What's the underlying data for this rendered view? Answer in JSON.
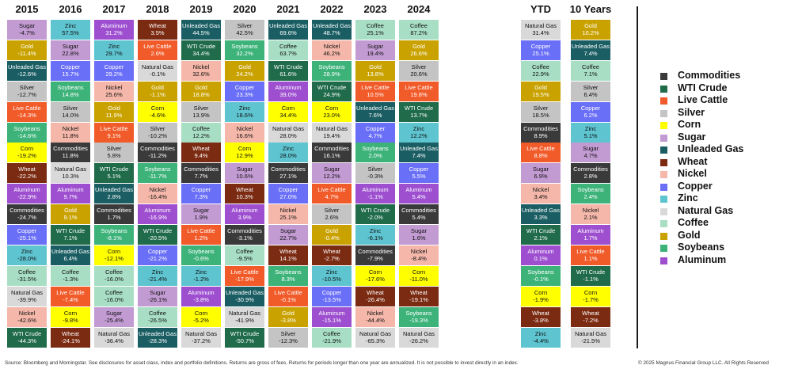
{
  "colors": {
    "Commodities": "#3a3a3a",
    "WTI Crude": "#1f6b4a",
    "Live Cattle": "#f15a29",
    "Silver": "#c4c4c4",
    "Corn": "#ffff00",
    "Sugar": "#c39bd3",
    "Unleaded Gas": "#1a5e63",
    "Wheat": "#7b2b12",
    "Nickel": "#f5b7aa",
    "Copper": "#6a6ff7",
    "Zinc": "#5ec4d0",
    "Natural Gas": "#d9d9d9",
    "Coffee": "#a8dfc4",
    "Gold": "#c9a200",
    "Soybeans": "#3db37a",
    "Aluminum": "#9d4fd0"
  },
  "dark_text": [
    "Commodities",
    "WTI Crude",
    "Live Cattle",
    "Unleaded Gas",
    "Wheat",
    "Copper",
    "Gold",
    "Soybeans",
    "Aluminum"
  ],
  "chart_data": {
    "type": "table",
    "columns": [
      "2015",
      "2016",
      "2017",
      "2018",
      "2019",
      "2020",
      "2021",
      "2022",
      "2023",
      "2024",
      "YTD",
      "10 Years"
    ],
    "cells": [
      [
        [
          "Sugar",
          "-4.7%"
        ],
        [
          "Gold",
          "-11.4%"
        ],
        [
          "Unleaded Gas",
          "-12.6%"
        ],
        [
          "Silver",
          "-12.7%"
        ],
        [
          "Live Cattle",
          "-14.3%"
        ],
        [
          "Soybeans",
          "-14.6%"
        ],
        [
          "Corn",
          "-19.2%"
        ],
        [
          "Wheat",
          "-22.2%"
        ],
        [
          "Aluminum",
          "-22.9%"
        ],
        [
          "Commodities",
          "-24.7%"
        ],
        [
          "Copper",
          "-25.1%"
        ],
        [
          "Zinc",
          "-28.0%"
        ],
        [
          "Coffee",
          "-31.5%"
        ],
        [
          "Natural Gas",
          "-39.9%"
        ],
        [
          "Nickel",
          "-42.6%"
        ],
        [
          "WTI Crude",
          "-44.3%"
        ]
      ],
      [
        [
          "Zinc",
          "57.5%"
        ],
        [
          "Sugar",
          "22.8%"
        ],
        [
          "Copper",
          "15.7%"
        ],
        [
          "Soybeans",
          "14.8%"
        ],
        [
          "Silver",
          "14.0%"
        ],
        [
          "Nickel",
          "11.8%"
        ],
        [
          "Commodities",
          "11.8%"
        ],
        [
          "Natural Gas",
          "10.3%"
        ],
        [
          "Aluminum",
          "9.7%"
        ],
        [
          "Gold",
          "9.1%"
        ],
        [
          "WTI Crude",
          "7.1%"
        ],
        [
          "Unleaded Gas",
          "6.4%"
        ],
        [
          "Coffee",
          "-1.3%"
        ],
        [
          "Live Cattle",
          "-7.4%"
        ],
        [
          "Corn",
          "-9.8%"
        ],
        [
          "Wheat",
          "-24.1%"
        ]
      ],
      [
        [
          "Aluminum",
          "31.2%"
        ],
        [
          "Zinc",
          "29.7%"
        ],
        [
          "Copper",
          "29.2%"
        ],
        [
          "Nickel",
          "25.6%"
        ],
        [
          "Gold",
          "11.9%"
        ],
        [
          "Live Cattle",
          "9.1%"
        ],
        [
          "Silver",
          "5.8%"
        ],
        [
          "WTI Crude",
          "5.1%"
        ],
        [
          "Unleaded Gas",
          "2.8%"
        ],
        [
          "Commodities",
          "1.7%"
        ],
        [
          "Soybeans",
          "-8.1%"
        ],
        [
          "Corn",
          "-12.1%"
        ],
        [
          "Coffee",
          "-16.0%"
        ],
        [
          "Coffee",
          "-16.0%"
        ],
        [
          "Sugar",
          "-25.4%"
        ],
        [
          "Natural Gas",
          "-36.4%"
        ]
      ],
      [
        [
          "Wheat",
          "3.5%"
        ],
        [
          "Live Cattle",
          "2.6%"
        ],
        [
          "Natural Gas",
          "-0.1%"
        ],
        [
          "Gold",
          "-1.1%"
        ],
        [
          "Corn",
          "-4.6%"
        ],
        [
          "Silver",
          "-10.2%"
        ],
        [
          "Commodities",
          "-11.2%"
        ],
        [
          "Soybeans",
          "-11.7%"
        ],
        [
          "Nickel",
          "-16.4%"
        ],
        [
          "Aluminum",
          "-16.9%"
        ],
        [
          "WTI Crude",
          "-20.5%"
        ],
        [
          "Copper",
          "-21.2%"
        ],
        [
          "Zinc",
          "-21.4%"
        ],
        [
          "Sugar",
          "-26.1%"
        ],
        [
          "Coffee",
          "-26.5%"
        ],
        [
          "Unleaded Gas",
          "-28.3%"
        ]
      ],
      [
        [
          "Unleaded Gas",
          "44.5%"
        ],
        [
          "WTI Crude",
          "34.4%"
        ],
        [
          "Nickel",
          "32.6%"
        ],
        [
          "Gold",
          "18.8%"
        ],
        [
          "Silver",
          "13.9%"
        ],
        [
          "Coffee",
          "12.2%"
        ],
        [
          "Wheat",
          "9.4%"
        ],
        [
          "Commodities",
          "7.7%"
        ],
        [
          "Copper",
          "7.3%"
        ],
        [
          "Sugar",
          "1.9%"
        ],
        [
          "Live Cattle",
          "1.2%"
        ],
        [
          "Soybeans",
          "-0.6%"
        ],
        [
          "Zinc",
          "-1.2%"
        ],
        [
          "Aluminum",
          "-3.8%"
        ],
        [
          "Corn",
          "-5.2%"
        ],
        [
          "Natural Gas",
          "-37.2%"
        ]
      ],
      [
        [
          "Silver",
          "42.5%"
        ],
        [
          "Soybeans",
          "32.2%"
        ],
        [
          "Gold",
          "24.2%"
        ],
        [
          "Copper",
          "23.3%"
        ],
        [
          "Zinc",
          "18.6%"
        ],
        [
          "Nickel",
          "16.6%"
        ],
        [
          "Corn",
          "12.9%"
        ],
        [
          "Sugar",
          "10.6%"
        ],
        [
          "Wheat",
          "10.3%"
        ],
        [
          "Aluminum",
          "3.9%"
        ],
        [
          "Commodities",
          "-3.1%"
        ],
        [
          "Coffee",
          "-9.5%"
        ],
        [
          "Live Cattle",
          "-17.9%"
        ],
        [
          "Unleaded Gas",
          "-30.9%"
        ],
        [
          "Natural Gas",
          "-41.9%"
        ],
        [
          "WTI Crude",
          "-50.7%"
        ]
      ],
      [
        [
          "Unleaded Gas",
          "69.6%"
        ],
        [
          "Coffee",
          "63.7%"
        ],
        [
          "WTI Crude",
          "61.6%"
        ],
        [
          "Aluminum",
          "39.0%"
        ],
        [
          "Corn",
          "34.4%"
        ],
        [
          "Natural Gas",
          "28.0%"
        ],
        [
          "Zinc",
          "28.0%"
        ],
        [
          "Commodities",
          "27.1%"
        ],
        [
          "Copper",
          "27.0%"
        ],
        [
          "Nickel",
          "25.1%"
        ],
        [
          "Sugar",
          "22.7%"
        ],
        [
          "Wheat",
          "14.1%"
        ],
        [
          "Soybeans",
          "8.3%"
        ],
        [
          "Live Cattle",
          "-0.1%"
        ],
        [
          "Gold",
          "-3.8%"
        ],
        [
          "Silver",
          "-12.3%"
        ]
      ],
      [
        [
          "Unleaded Gas",
          "48.7%"
        ],
        [
          "Nickel",
          "46.2%"
        ],
        [
          "Soybeans",
          "28.9%"
        ],
        [
          "WTI Crude",
          "24.9%"
        ],
        [
          "Corn",
          "23.0%"
        ],
        [
          "Natural Gas",
          "19.4%"
        ],
        [
          "Commodities",
          "16.1%"
        ],
        [
          "Sugar",
          "12.2%"
        ],
        [
          "Live Cattle",
          "4.7%"
        ],
        [
          "Silver",
          "2.6%"
        ],
        [
          "Gold",
          "-0.4%"
        ],
        [
          "Wheat",
          "-2.7%"
        ],
        [
          "Zinc",
          "-10.5%"
        ],
        [
          "Copper",
          "-13.5%"
        ],
        [
          "Aluminum",
          "-15.1%"
        ],
        [
          "Coffee",
          "-21.9%"
        ]
      ],
      [
        [
          "Coffee",
          "25.1%"
        ],
        [
          "Sugar",
          "19.4%"
        ],
        [
          "Gold",
          "13.8%"
        ],
        [
          "Live Cattle",
          "10.5%"
        ],
        [
          "Unleaded Gas",
          "7.6%"
        ],
        [
          "Copper",
          "4.7%"
        ],
        [
          "Soybeans",
          "2.0%"
        ],
        [
          "Silver",
          "-0.3%"
        ],
        [
          "Aluminum",
          "-1.1%"
        ],
        [
          "WTI Crude",
          "-2.0%"
        ],
        [
          "Zinc",
          "-6.1%"
        ],
        [
          "Commodities",
          "-7.9%"
        ],
        [
          "Corn",
          "-17.6%"
        ],
        [
          "Wheat",
          "-26.4%"
        ],
        [
          "Nickel",
          "-44.4%"
        ],
        [
          "Natural Gas",
          "-65.3%"
        ]
      ],
      [
        [
          "Coffee",
          "87.2%"
        ],
        [
          "Gold",
          "26.6%"
        ],
        [
          "Silver",
          "20.6%"
        ],
        [
          "Live Cattle",
          "19.8%"
        ],
        [
          "WTI Crude",
          "13.7%"
        ],
        [
          "Zinc",
          "12.2%"
        ],
        [
          "Unleaded Gas",
          "7.4%"
        ],
        [
          "Copper",
          "5.5%"
        ],
        [
          "Aluminum",
          "5.4%"
        ],
        [
          "Commodities",
          "5.4%"
        ],
        [
          "Sugar",
          "1.6%"
        ],
        [
          "Nickel",
          "-8.4%"
        ],
        [
          "Corn",
          "-11.0%"
        ],
        [
          "Wheat",
          "-19.1%"
        ],
        [
          "Soybeans",
          "-19.3%"
        ],
        [
          "Natural Gas",
          "-26.2%"
        ]
      ],
      [
        [
          "Natural Gas",
          "31.4%"
        ],
        [
          "Copper",
          "25.1%"
        ],
        [
          "Coffee",
          "22.9%"
        ],
        [
          "Gold",
          "19.5%"
        ],
        [
          "Silver",
          "18.5%"
        ],
        [
          "Commodities",
          "8.9%"
        ],
        [
          "Live Cattle",
          "8.8%"
        ],
        [
          "Sugar",
          "6.9%"
        ],
        [
          "Nickel",
          "3.4%"
        ],
        [
          "Unleaded Gas",
          "3.3%"
        ],
        [
          "WTI Crude",
          "2.1%"
        ],
        [
          "Aluminum",
          "0.1%"
        ],
        [
          "Soybeans",
          "-0.1%"
        ],
        [
          "Corn",
          "-1.9%"
        ],
        [
          "Wheat",
          "-3.8%"
        ],
        [
          "Zinc",
          "-4.4%"
        ]
      ],
      [
        [
          "Gold",
          "10.2%"
        ],
        [
          "Unleaded Gas",
          "7.4%"
        ],
        [
          "Coffee",
          "7.1%"
        ],
        [
          "Silver",
          "6.4%"
        ],
        [
          "Copper",
          "6.2%"
        ],
        [
          "Zinc",
          "5.1%"
        ],
        [
          "Sugar",
          "4.7%"
        ],
        [
          "Commodities",
          "2.8%"
        ],
        [
          "Soybeans",
          "2.4%"
        ],
        [
          "Nickel",
          "2.1%"
        ],
        [
          "Aluminum",
          "1.7%"
        ],
        [
          "Live Cattle",
          "1.1%"
        ],
        [
          "WTI Crude",
          "-1.1%"
        ],
        [
          "Corn",
          "-1.7%"
        ],
        [
          "Wheat",
          "-7.2%"
        ],
        [
          "Natural Gas",
          "-21.5%"
        ]
      ]
    ],
    "legend": [
      "Commodities",
      "WTI Crude",
      "Live Cattle",
      "Silver",
      "Corn",
      "Sugar",
      "Unleaded Gas",
      "Wheat",
      "Nickel",
      "Copper",
      "Zinc",
      "Natural Gas",
      "Coffee",
      "Gold",
      "Soybeans",
      "Aluminum"
    ]
  },
  "footer": {
    "source": "Source: Bloomberg and Morningstar. See disclosures for asset class, index and portfolio definitions. Returns are gross of fees. Returns for periods longer than one year are annualized. It is not possible to invest directly in an index.",
    "copyright": "© 2025 Magnus Financial Group LLC. All Rights Reserved"
  }
}
